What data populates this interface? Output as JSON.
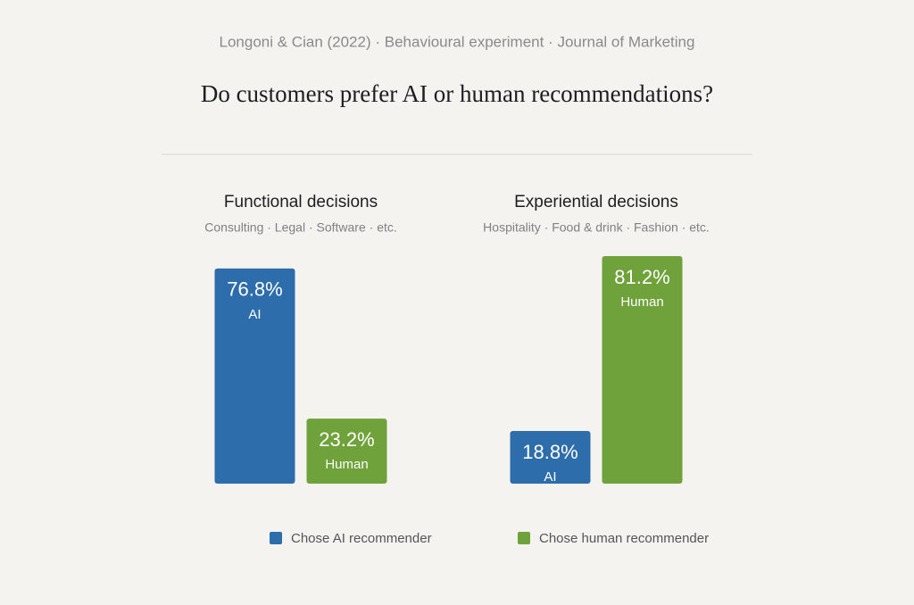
{
  "source": "Longoni & Cian (2022) · Behavioural experiment · Journal of Marketing",
  "title": "Do customers prefer AI or human recommendations?",
  "chart_data": [
    {
      "type": "bar",
      "title": "Functional decisions",
      "subtitle": "Consulting · Legal · Software · etc.",
      "categories": [
        "AI",
        "Human"
      ],
      "values": [
        76.8,
        23.2
      ],
      "value_labels": [
        "76.8%",
        "23.2%"
      ],
      "colors": [
        "#2e6dab",
        "#6fa23a"
      ]
    },
    {
      "type": "bar",
      "title": "Experiential decisions",
      "subtitle": "Hospitality · Food & drink · Fashion · etc.",
      "categories": [
        "AI",
        "Human"
      ],
      "values": [
        18.8,
        81.2
      ],
      "value_labels": [
        "18.8%",
        "81.2%"
      ],
      "colors": [
        "#2e6dab",
        "#6fa23a"
      ]
    }
  ],
  "legend": [
    {
      "name": "Chose AI recommender",
      "color": "#2e6dab"
    },
    {
      "name": "Chose human recommender",
      "color": "#6fa23a"
    }
  ]
}
